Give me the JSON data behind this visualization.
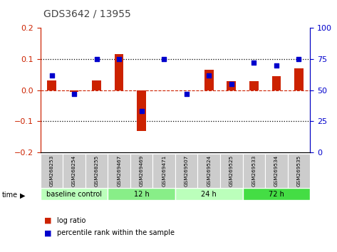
{
  "title": "GDS3642 / 13955",
  "samples": [
    "GSM268253",
    "GSM268254",
    "GSM268255",
    "GSM269467",
    "GSM269469",
    "GSM269471",
    "GSM269507",
    "GSM269524",
    "GSM269525",
    "GSM269533",
    "GSM269534",
    "GSM269535"
  ],
  "log_ratio": [
    0.03,
    -0.005,
    0.03,
    0.115,
    -0.13,
    0.0,
    0.0,
    0.065,
    0.028,
    0.028,
    0.045,
    0.07
  ],
  "percentile_rank": [
    62,
    47,
    75,
    75,
    33,
    75,
    47,
    62,
    55,
    72,
    70,
    75
  ],
  "groups": [
    {
      "label": "baseline control",
      "start": 0,
      "end": 3,
      "color": "#bbffbb"
    },
    {
      "label": "12 h",
      "start": 3,
      "end": 6,
      "color": "#88ee88"
    },
    {
      "label": "24 h",
      "start": 6,
      "end": 9,
      "color": "#bbffbb"
    },
    {
      "label": "72 h",
      "start": 9,
      "end": 12,
      "color": "#44dd44"
    }
  ],
  "ylim_left": [
    -0.2,
    0.2
  ],
  "ylim_right": [
    0,
    100
  ],
  "yticks_left": [
    -0.2,
    -0.1,
    0.0,
    0.1,
    0.2
  ],
  "yticks_right": [
    0,
    25,
    50,
    75,
    100
  ],
  "bar_color": "#cc2200",
  "dot_color": "#0000cc",
  "background_color": "#ffffff",
  "left_axis_color": "#cc2200",
  "right_axis_color": "#0000cc",
  "title_color": "#444444",
  "label_bg_color": "#cccccc",
  "hline_color": "#000000",
  "zero_line_color": "#cc2200"
}
